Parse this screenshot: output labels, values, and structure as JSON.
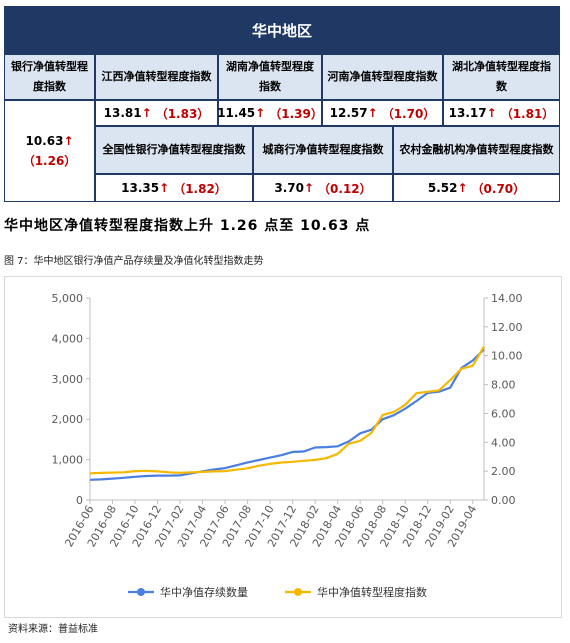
{
  "header": {
    "title": "华中地区"
  },
  "table": {
    "row1_label": "银行净值转型程度指数",
    "main_value": "10.63",
    "main_change": "（1.26）",
    "provinces": [
      {
        "label": "江西净值转型程度指数",
        "value": "13.81",
        "change": "（1.83）"
      },
      {
        "label": "湖南净值转型程度指数",
        "value": "11.45",
        "change": "（1.39）"
      },
      {
        "label": "河南净值转型程度指数",
        "value": "12.57",
        "change": "（1.70）"
      },
      {
        "label": "湖北净值转型程度指数",
        "value": "13.17",
        "change": "（1.81）"
      }
    ],
    "bank_types": [
      {
        "label": "全国性银行净值转型程度指数",
        "value": "13.35",
        "change": "（1.82）"
      },
      {
        "label": "城商行净值转型程度指数",
        "value": "3.70",
        "change": "（0.12）"
      },
      {
        "label": "农村金融机构净值转型程度指数",
        "value": "5.52",
        "change": "（0.70）"
      }
    ],
    "up_arrow": "↑"
  },
  "headline": "华中地区净值转型程度指数上升 1.26 点至 10.63 点",
  "figure_caption": "图 7：华中地区银行净值产品存续量及净值化转型指数走势",
  "source": "资料来源：普益标准",
  "chart_data": {
    "type": "line",
    "x": [
      "2016-06",
      "2016-07",
      "2016-08",
      "2016-09",
      "2016-10",
      "2016-11",
      "2016-12",
      "2017-01",
      "2017-02",
      "2017-03",
      "2017-04",
      "2017-05",
      "2017-06",
      "2017-07",
      "2017-08",
      "2017-09",
      "2017-10",
      "2017-11",
      "2017-12",
      "2018-01",
      "2018-02",
      "2018-03",
      "2018-04",
      "2018-05",
      "2018-06",
      "2018-07",
      "2018-08",
      "2018-09",
      "2018-10",
      "2018-11",
      "2018-12",
      "2019-01",
      "2019-02",
      "2019-03",
      "2019-04",
      "2019-05"
    ],
    "x_tick_labels": [
      "2016-06",
      "2016-08",
      "2016-10",
      "2016-12",
      "2017-02",
      "2017-04",
      "2017-06",
      "2017-08",
      "2017-10",
      "2017-12",
      "2018-02",
      "2018-04",
      "2018-06",
      "2018-08",
      "2018-10",
      "2018-12",
      "2019-02",
      "2019-04"
    ],
    "series": [
      {
        "name": "华中净值存续数量",
        "axis": "left",
        "color": "#4a7ee0",
        "values": [
          500,
          510,
          530,
          550,
          575,
          595,
          605,
          605,
          610,
          660,
          710,
          755,
          790,
          860,
          930,
          990,
          1050,
          1110,
          1190,
          1200,
          1300,
          1310,
          1330,
          1450,
          1650,
          1740,
          2000,
          2100,
          2260,
          2450,
          2650,
          2680,
          2780,
          3270,
          3450,
          3730
        ]
      },
      {
        "name": "华中净值转型程度指数",
        "axis": "right",
        "color": "#f5b800",
        "values": [
          1.85,
          1.88,
          1.9,
          1.92,
          2.0,
          2.02,
          1.98,
          1.92,
          1.88,
          1.92,
          1.95,
          1.98,
          2.0,
          2.1,
          2.2,
          2.38,
          2.5,
          2.6,
          2.65,
          2.72,
          2.78,
          2.9,
          3.2,
          3.9,
          4.1,
          4.65,
          5.9,
          6.1,
          6.6,
          7.4,
          7.5,
          7.6,
          8.3,
          9.1,
          9.3,
          10.63
        ]
      }
    ],
    "y_left": {
      "min": 0,
      "max": 5000,
      "ticks": [
        "0",
        "1,000",
        "2,000",
        "3,000",
        "4,000",
        "5,000"
      ]
    },
    "y_right": {
      "min": 0,
      "max": 14,
      "ticks": [
        "0.00",
        "2.00",
        "4.00",
        "6.00",
        "8.00",
        "10.00",
        "12.00",
        "14.00"
      ]
    },
    "grid": false,
    "legend_position": "bottom"
  }
}
